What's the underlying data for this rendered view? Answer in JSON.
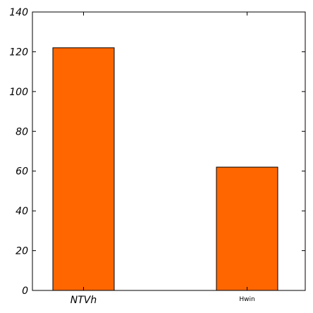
{
  "chart_data": {
    "type": "bar",
    "categories": [
      "NTVh",
      "Hwin"
    ],
    "values": [
      122,
      62
    ],
    "title": "",
    "xlabel": "",
    "ylabel": "",
    "ylim": [
      0,
      140
    ],
    "yticks": [
      "0",
      "20",
      "40",
      "60",
      "80",
      "100",
      "120",
      "140"
    ],
    "bar_color": "#ff6600",
    "bar_edge_color": "#000000",
    "grid": false,
    "legend": "none"
  }
}
